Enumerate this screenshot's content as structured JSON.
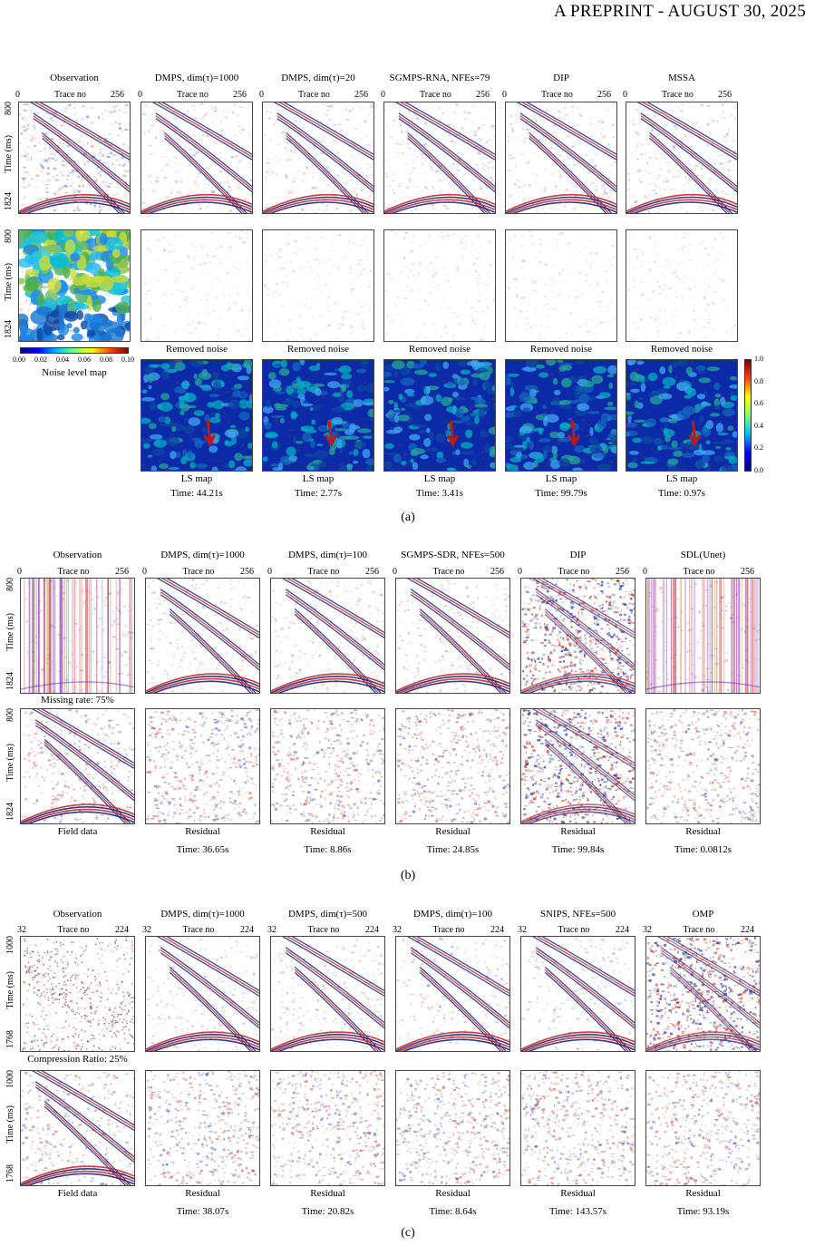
{
  "header": "A PREPRINT - AUGUST 30, 2025",
  "common": {
    "trace_label": "Trace no",
    "time_label": "Time (ms)"
  },
  "figure_a": {
    "label": "(a)",
    "x_ticks": [
      "0",
      "256"
    ],
    "y_ticks": [
      "800",
      "1824"
    ],
    "titles": [
      "Observation",
      "DMPS, dim(τ)=1000",
      "DMPS, dim(τ)=20",
      "SGMPS-RNA, NFEs=79",
      "DIP",
      "MSSA"
    ],
    "noise_caption": "Removed noise",
    "ls_caption": "LS map",
    "noise_map_caption": "Noise level map",
    "noise_colorbar_ticks": [
      "0.00",
      "0.02",
      "0.04",
      "0.06",
      "0.08",
      "0.10"
    ],
    "ls_colorbar_ticks": [
      "1.0",
      "0.8",
      "0.6",
      "0.4",
      "0.2",
      "0.0"
    ],
    "times": [
      "Time: 44.21s",
      "Time: 2.77s",
      "Time: 3.41s",
      "Time: 99.79s",
      "Time: 0.97s"
    ]
  },
  "figure_b": {
    "label": "(b)",
    "x_ticks": [
      "0",
      "256"
    ],
    "y_ticks": [
      "800",
      "1824"
    ],
    "titles": [
      "Observation",
      "DMPS, dim(τ)=1000",
      "DMPS, dim(τ)=100",
      "SGMPS-SDR, NFEs=500",
      "DIP",
      "SDL(Unet)"
    ],
    "missing_rate": "Missing rate: 75%",
    "field_caption": "Field data",
    "residual_caption": "Residual",
    "times": [
      "Time: 36.65s",
      "Time: 8.86s",
      "Time: 24.85s",
      "Time: 99.84s",
      "Time: 0.0812s"
    ]
  },
  "figure_c": {
    "label": "(c)",
    "x_ticks": [
      "32",
      "224"
    ],
    "y_ticks": [
      "1000",
      "1768"
    ],
    "titles": [
      "Observation",
      "DMPS, dim(τ)=1000",
      "DMPS, dim(τ)=500",
      "DMPS, dim(τ)=100",
      "SNIPS, NFEs=500",
      "OMP"
    ],
    "compression": "Compression Ratio: 25%",
    "field_caption": "Field data",
    "residual_caption": "Residual",
    "times": [
      "Time: 38.07s",
      "Time: 20.82s",
      "Time: 8.64s",
      "Time: 143.57s",
      "Time: 93.19s"
    ]
  }
}
